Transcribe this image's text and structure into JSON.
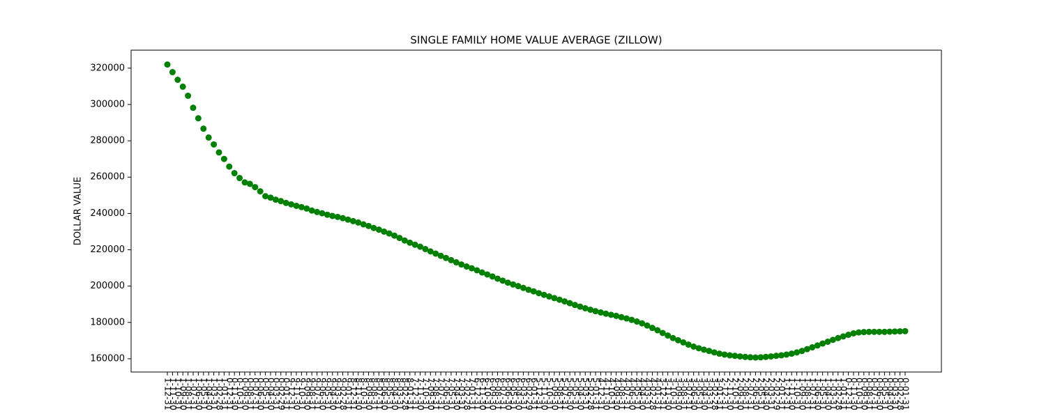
{
  "chart_data": {
    "type": "scatter",
    "title": "SINGLE FAMILY HOME VALUE AVERAGE (ZILLOW)",
    "y_label": "DOLLAR VALUE",
    "color": "#008000",
    "categories": [
      "1-12-31",
      "1-11-30",
      "1-10-31",
      "1-09-30",
      "1-08-31",
      "1-07-31",
      "1-06-30",
      "1-05-31",
      "1-04-30",
      "1-03-31",
      "1-02-28",
      "1-01-31",
      "0-12-31",
      "0-11-30",
      "0-10-31",
      "0-09-30",
      "0-08-31",
      "0-07-31",
      "0-06-30",
      "0-05-31",
      "0-04-30",
      "0-03-31",
      "0-02-29",
      "0-01-31",
      "9-12-31",
      "9-11-30",
      "9-10-31",
      "9-09-30",
      "9-08-31",
      "9-07-31",
      "9-06-30",
      "9-05-31",
      "9-04-30",
      "9-03-31",
      "9-02-28",
      "9-01-31",
      "8-12-31",
      "8-11-30",
      "8-10-31",
      "8-09-30",
      "8-08-31",
      "8-07-31",
      "8-06-30",
      "8-05-31",
      "8-04-30",
      "8-03-31",
      "8-02-28",
      "8-01-31",
      "7-12-31",
      "7-11-30",
      "7-10-31",
      "7-09-30",
      "7-08-31",
      "7-07-31",
      "7-06-30",
      "7-05-31",
      "7-04-30",
      "7-03-31",
      "7-02-28",
      "7-01-31",
      "6-12-31",
      "6-11-30",
      "6-10-31",
      "6-09-30",
      "6-08-31",
      "6-07-31",
      "6-06-30",
      "6-05-31",
      "6-04-30",
      "6-03-31",
      "6-02-29",
      "6-01-31",
      "5-12-31",
      "5-11-30",
      "5-10-31",
      "5-09-30",
      "5-08-31",
      "5-07-31",
      "5-06-30",
      "5-05-31",
      "5-04-30",
      "5-03-31",
      "5-02-28",
      "5-01-31",
      "4-12-31",
      "4-11-30",
      "4-10-31",
      "4-09-30",
      "4-08-31",
      "4-07-31",
      "4-06-30",
      "4-05-31",
      "4-04-30",
      "4-03-31",
      "4-02-28",
      "4-01-31",
      "3-12-31",
      "3-11-30",
      "3-10-31",
      "3-09-30",
      "3-08-31",
      "3-07-31",
      "3-06-30",
      "3-05-31",
      "3-04-30",
      "3-03-31",
      "3-02-28",
      "3-01-31",
      "2-12-31",
      "2-11-30",
      "2-10-31",
      "2-09-30",
      "2-08-31",
      "2-07-31",
      "2-06-30",
      "2-05-31",
      "2-04-30",
      "2-03-31",
      "2-02-29",
      "2-01-31",
      "1-12-31",
      "1-11-30",
      "1-10-31",
      "1-09-30",
      "1-08-31",
      "1-07-31",
      "1-06-30",
      "1-05-31",
      "1-04-30",
      "1-03-31",
      "1-02-28",
      "1-01-31",
      "0-12-31",
      "0-11-30",
      "0-10-31",
      "0-09-30",
      "0-08-31",
      "0-07-31",
      "0-06-30",
      "0-05-31",
      "0-04-30",
      "0-03-31",
      "0-02-28",
      "0-01-31"
    ],
    "values": [
      322000,
      317800,
      313600,
      309800,
      304800,
      298200,
      292400,
      286700,
      281800,
      278000,
      273600,
      270000,
      265800,
      262200,
      259500,
      257100,
      256300,
      254500,
      252200,
      249500,
      248700,
      247600,
      246800,
      245800,
      245000,
      244200,
      243500,
      242700,
      241600,
      240800,
      240100,
      239300,
      238600,
      238100,
      237400,
      236600,
      235800,
      235000,
      234000,
      233100,
      232000,
      231100,
      230000,
      229000,
      227800,
      226500,
      225100,
      223900,
      222800,
      221700,
      220400,
      219100,
      217900,
      216700,
      215500,
      214300,
      213100,
      211900,
      210800,
      209800,
      208700,
      207500,
      206400,
      205300,
      204100,
      203000,
      201900,
      200900,
      200000,
      199000,
      198000,
      197100,
      196100,
      195200,
      194300,
      193400,
      192500,
      191600,
      190600,
      189600,
      188700,
      187800,
      187000,
      186200,
      185500,
      184800,
      184200,
      183600,
      182900,
      182200,
      181400,
      180500,
      179500,
      178300,
      177000,
      175700,
      174200,
      172800,
      171400,
      170200,
      169000,
      167800,
      166700,
      165800,
      165000,
      164300,
      163500,
      162800,
      162300,
      161900,
      161600,
      161300,
      161000,
      160800,
      160700,
      160800,
      161000,
      161300,
      161600,
      161900,
      162300,
      162800,
      163500,
      164300,
      165300,
      166300,
      167300,
      168400,
      169400,
      170400,
      171400,
      172300,
      173200,
      174000,
      174500,
      174700,
      174800,
      174800,
      174800,
      174800,
      174900,
      175000,
      175100,
      175200
    ],
    "ylim": [
      152700,
      329900
    ],
    "yticks": [
      160000,
      180000,
      200000,
      220000,
      240000,
      260000,
      280000,
      300000,
      320000
    ]
  }
}
